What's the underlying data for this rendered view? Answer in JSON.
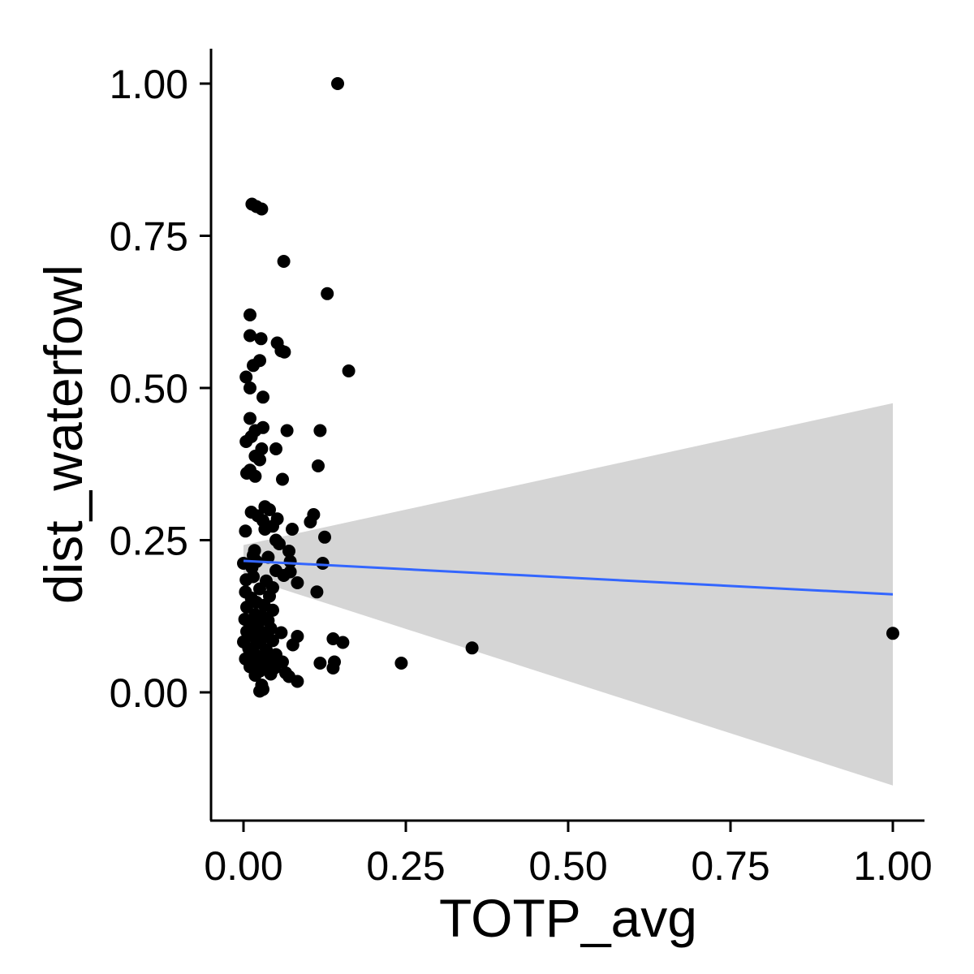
{
  "chart_data": {
    "type": "scatter",
    "title": "",
    "xlabel": "TOTP_avg",
    "ylabel": "dist_waterfowl",
    "xlim": [
      -0.05,
      1.05
    ],
    "ylim": [
      -0.21,
      1.06
    ],
    "x_ticks": [
      {
        "value": 0.0,
        "label": "0.00"
      },
      {
        "value": 0.25,
        "label": "0.25"
      },
      {
        "value": 0.5,
        "label": "0.50"
      },
      {
        "value": 0.75,
        "label": "0.75"
      },
      {
        "value": 1.0,
        "label": "1.00"
      }
    ],
    "y_ticks": [
      {
        "value": 0.0,
        "label": "0.00"
      },
      {
        "value": 0.25,
        "label": "0.25"
      },
      {
        "value": 0.5,
        "label": "0.50"
      },
      {
        "value": 0.75,
        "label": "0.75"
      },
      {
        "value": 1.0,
        "label": "1.00"
      }
    ],
    "grid": false,
    "legend": "none",
    "point_color": "#000000",
    "points": [
      [
        0.145,
        1.0
      ],
      [
        0.013,
        0.802
      ],
      [
        0.02,
        0.798
      ],
      [
        0.028,
        0.794
      ],
      [
        0.062,
        0.708
      ],
      [
        0.129,
        0.655
      ],
      [
        0.01,
        0.62
      ],
      [
        0.01,
        0.586
      ],
      [
        0.027,
        0.581
      ],
      [
        0.052,
        0.574
      ],
      [
        0.058,
        0.561
      ],
      [
        0.063,
        0.559
      ],
      [
        0.025,
        0.545
      ],
      [
        0.015,
        0.537
      ],
      [
        0.162,
        0.528
      ],
      [
        0.004,
        0.518
      ],
      [
        0.01,
        0.5
      ],
      [
        0.03,
        0.485
      ],
      [
        0.01,
        0.45
      ],
      [
        0.03,
        0.435
      ],
      [
        0.018,
        0.43
      ],
      [
        0.067,
        0.43
      ],
      [
        0.118,
        0.43
      ],
      [
        0.012,
        0.42
      ],
      [
        0.004,
        0.412
      ],
      [
        0.028,
        0.4
      ],
      [
        0.05,
        0.4
      ],
      [
        0.018,
        0.388
      ],
      [
        0.025,
        0.382
      ],
      [
        0.115,
        0.372
      ],
      [
        0.01,
        0.365
      ],
      [
        0.005,
        0.36
      ],
      [
        0.018,
        0.355
      ],
      [
        0.06,
        0.35
      ],
      [
        0.033,
        0.305
      ],
      [
        0.04,
        0.3
      ],
      [
        0.012,
        0.296
      ],
      [
        0.022,
        0.29
      ],
      [
        0.052,
        0.285
      ],
      [
        0.108,
        0.292
      ],
      [
        0.03,
        0.282
      ],
      [
        0.103,
        0.28
      ],
      [
        0.045,
        0.273
      ],
      [
        0.033,
        0.268
      ],
      [
        0.075,
        0.268
      ],
      [
        0.003,
        0.265
      ],
      [
        0.05,
        0.25
      ],
      [
        0.125,
        0.255
      ],
      [
        0.055,
        0.244
      ],
      [
        0.017,
        0.233
      ],
      [
        0.07,
        0.232
      ],
      [
        0.015,
        0.225
      ],
      [
        0.038,
        0.222
      ],
      [
        0.072,
        0.215
      ],
      [
        0.0,
        0.212
      ],
      [
        0.02,
        0.215
      ],
      [
        0.122,
        0.212
      ],
      [
        0.013,
        0.205
      ],
      [
        0.05,
        0.2
      ],
      [
        0.072,
        0.198
      ],
      [
        0.062,
        0.192
      ],
      [
        0.004,
        0.185
      ],
      [
        0.015,
        0.19
      ],
      [
        0.035,
        0.183
      ],
      [
        0.083,
        0.18
      ],
      [
        0.045,
        0.172
      ],
      [
        0.003,
        0.165
      ],
      [
        0.025,
        0.17
      ],
      [
        0.113,
        0.165
      ],
      [
        0.012,
        0.155
      ],
      [
        0.04,
        0.158
      ],
      [
        0.02,
        0.148
      ],
      [
        0.032,
        0.143
      ],
      [
        0.005,
        0.14
      ],
      [
        0.045,
        0.135
      ],
      [
        0.018,
        0.128
      ],
      [
        0.028,
        0.125
      ],
      [
        0.002,
        0.12
      ],
      [
        0.038,
        0.118
      ],
      [
        0.01,
        0.112
      ],
      [
        0.022,
        0.108
      ],
      [
        0.042,
        0.105
      ],
      [
        0.005,
        0.1
      ],
      [
        0.032,
        0.098
      ],
      [
        0.058,
        0.098
      ],
      [
        0.015,
        0.092
      ],
      [
        0.083,
        0.092
      ],
      [
        0.028,
        0.088
      ],
      [
        0.0,
        0.083
      ],
      [
        0.045,
        0.085
      ],
      [
        0.138,
        0.088
      ],
      [
        0.02,
        0.08
      ],
      [
        0.076,
        0.078
      ],
      [
        0.153,
        0.082
      ],
      [
        0.008,
        0.072
      ],
      [
        0.035,
        0.07
      ],
      [
        0.352,
        0.073
      ],
      [
        0.016,
        0.065
      ],
      [
        0.05,
        0.062
      ],
      [
        0.025,
        0.058
      ],
      [
        0.042,
        0.055
      ],
      [
        0.003,
        0.055
      ],
      [
        0.06,
        0.05
      ],
      [
        0.118,
        0.048
      ],
      [
        0.018,
        0.048
      ],
      [
        0.14,
        0.05
      ],
      [
        0.243,
        0.048
      ],
      [
        0.035,
        0.045
      ],
      [
        0.01,
        0.042
      ],
      [
        0.048,
        0.04
      ],
      [
        0.138,
        0.04
      ],
      [
        0.025,
        0.035
      ],
      [
        0.065,
        0.032
      ],
      [
        0.042,
        0.03
      ],
      [
        0.018,
        0.028
      ],
      [
        0.07,
        0.026
      ],
      [
        0.083,
        0.018
      ],
      [
        0.028,
        0.012
      ],
      [
        0.025,
        0.002
      ],
      [
        0.03,
        0.005
      ],
      [
        1.0,
        0.097
      ]
    ],
    "smooth": {
      "method": "linear fit",
      "line_color": "#3366FF",
      "band_color": "#D3D3D3",
      "x_start": 0.0,
      "x_end": 1.0,
      "fit_start": 0.216,
      "fit_end": 0.161,
      "band_start": [
        0.19,
        0.242
      ],
      "band_end": [
        -0.153,
        0.475
      ]
    }
  }
}
